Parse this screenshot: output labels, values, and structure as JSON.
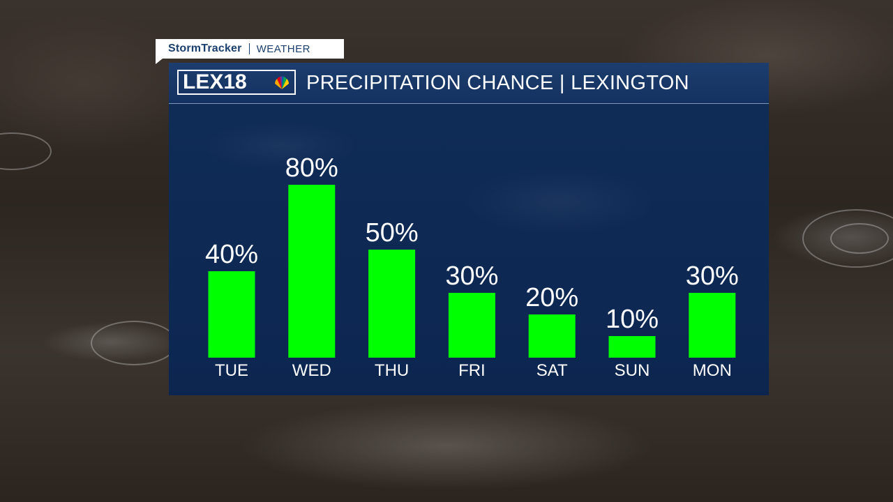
{
  "brand": {
    "stormtracker": "StormTracker",
    "weather": "WEATHER",
    "station_logo": "LEX18",
    "peacock_icon": "nbc-peacock-icon"
  },
  "header": {
    "title": "PRECIPITATION CHANCE | LEXINGTON"
  },
  "colors": {
    "bar": "#00ff00",
    "panel": "#0e2a54",
    "header": "#1c3d6e",
    "text": "#ffffff"
  },
  "chart_data": {
    "type": "bar",
    "title": "PRECIPITATION CHANCE | LEXINGTON",
    "categories": [
      "TUE",
      "WED",
      "THU",
      "FRI",
      "SAT",
      "SUN",
      "MON"
    ],
    "values": [
      40,
      80,
      50,
      30,
      20,
      10,
      30
    ],
    "value_labels": [
      "40%",
      "80%",
      "50%",
      "30%",
      "20%",
      "10%",
      "30%"
    ],
    "ylim": [
      0,
      100
    ],
    "grid": false,
    "legend": "none"
  }
}
